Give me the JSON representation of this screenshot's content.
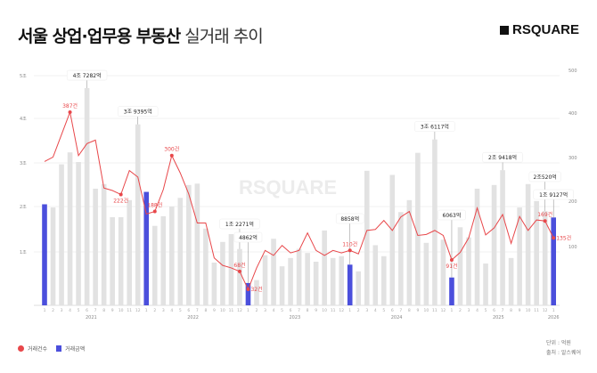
{
  "header": {
    "title_bold": "서울 상업·업무용 부동산",
    "title_light": "실거래 추이",
    "logo": "RSQUARE"
  },
  "legend": {
    "count": "거래건수",
    "amount": "거래금액"
  },
  "footer": {
    "unit": "단위 : 억원",
    "source": "출처 : 알스퀘어"
  },
  "watermark": "RSQUARE",
  "colors": {
    "bar": "#e2e2e2",
    "bar_highlight": "#4b4fdc",
    "line": "#e8474a"
  },
  "chart_data": {
    "type": "bar+line",
    "title": "서울 상업·업무용 부동산 실거래 추이",
    "y_ticks_left": [
      "5조",
      "4조",
      "3조",
      "2조",
      "1조"
    ],
    "y_ticks_left_values": [
      50000,
      40000,
      30000,
      20000,
      10000
    ],
    "ylim_left": [
      0,
      50000
    ],
    "y_ticks_right": [
      "500",
      "400",
      "300",
      "200",
      "100"
    ],
    "ylim_right": [
      0,
      460
    ],
    "years": [
      "2021",
      "2022",
      "2023",
      "2024",
      "2025",
      "2026"
    ],
    "months": [
      "1",
      "2",
      "3",
      "4",
      "5",
      "6",
      "7",
      "8",
      "9",
      "10",
      "11",
      "12",
      "1",
      "2",
      "3",
      "4",
      "5",
      "6",
      "7",
      "8",
      "9",
      "10",
      "11",
      "12",
      "1",
      "2",
      "3",
      "4",
      "5",
      "6",
      "7",
      "8",
      "9",
      "10",
      "11",
      "12",
      "1",
      "2",
      "3",
      "4",
      "5",
      "6",
      "7",
      "8",
      "9",
      "10",
      "11",
      "12",
      "1",
      "2",
      "3",
      "4",
      "5",
      "6",
      "7",
      "8",
      "9",
      "10",
      "11",
      "12",
      "1"
    ],
    "series": [
      {
        "name": "거래금액",
        "unit": "억원",
        "type": "bar",
        "values": [
          22000,
          21300,
          30700,
          33300,
          31200,
          47282,
          25400,
          26400,
          19200,
          19200,
          22900,
          39395,
          24700,
          17300,
          19400,
          21500,
          23400,
          26200,
          26500,
          16700,
          9300,
          13800,
          15500,
          12271,
          4862,
          5500,
          10900,
          14500,
          8500,
          10300,
          12300,
          11400,
          9500,
          16300,
          10300,
          10700,
          8858,
          7400,
          29300,
          13100,
          10700,
          28400,
          20300,
          22900,
          33200,
          13600,
          36117,
          14300,
          6063,
          17000,
          14800,
          25400,
          9100,
          26200,
          29418,
          10300,
          21300,
          26400,
          22700,
          20520,
          19127
        ]
      },
      {
        "name": "거래건수",
        "unit": "건",
        "type": "line",
        "values": [
          288,
          297,
          342,
          387,
          300,
          324,
          331,
          235,
          230,
          222,
          270,
          257,
          183,
          188,
          232,
          300,
          265,
          223,
          165,
          165,
          95,
          80,
          75,
          68,
          32,
          75,
          110,
          100,
          120,
          105,
          110,
          145,
          110,
          100,
          110,
          105,
          110,
          103,
          150,
          152,
          170,
          150,
          177,
          188,
          140,
          142,
          150,
          140,
          91,
          106,
          135,
          195,
          141,
          155,
          182,
          124,
          178,
          150,
          171,
          169,
          135
        ]
      }
    ],
    "highlight_months": [
      0,
      12,
      24,
      36,
      48,
      60
    ],
    "bar_annotations": [
      {
        "index": 5,
        "label": "4조 7282억"
      },
      {
        "index": 11,
        "label": "3조 9395억"
      },
      {
        "index": 23,
        "label": "1조 2271억"
      },
      {
        "index": 24,
        "label": "4862억"
      },
      {
        "index": 36,
        "label": "8858억"
      },
      {
        "index": 46,
        "label": "3조 6117억"
      },
      {
        "index": 48,
        "label": "6063억"
      },
      {
        "index": 54,
        "label": "2조 9418억"
      },
      {
        "index": 59,
        "label": "2조520억"
      },
      {
        "index": 60,
        "label": "1조 9127억"
      }
    ],
    "line_annotations": [
      {
        "index": 3,
        "label": "387건"
      },
      {
        "index": 9,
        "label": "222건"
      },
      {
        "index": 13,
        "label": "188건"
      },
      {
        "index": 15,
        "label": "300건"
      },
      {
        "index": 23,
        "label": "68건"
      },
      {
        "index": 24,
        "label": "32건"
      },
      {
        "index": 36,
        "label": "110건"
      },
      {
        "index": 48,
        "label": "91건"
      },
      {
        "index": 59,
        "label": "169건"
      },
      {
        "index": 60,
        "label": "135건"
      }
    ],
    "legend_position": "bottom-left",
    "grid": true
  }
}
